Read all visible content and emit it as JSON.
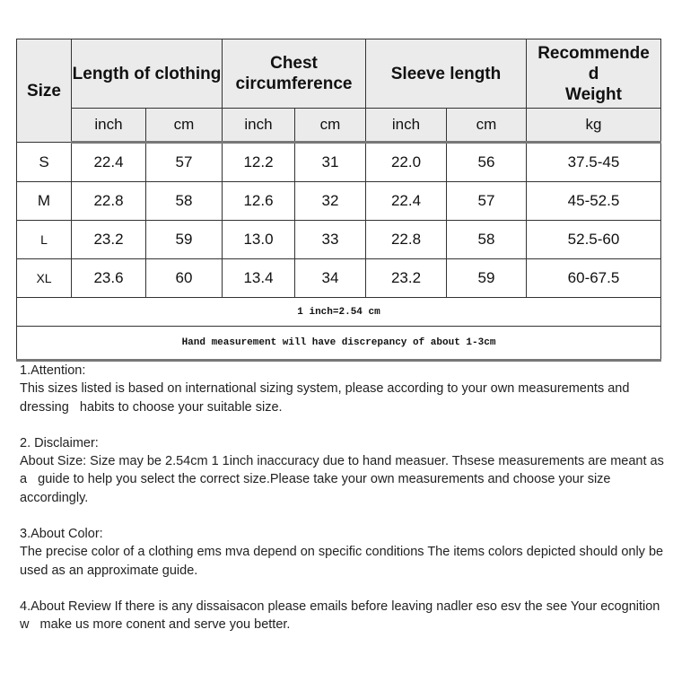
{
  "table": {
    "headers": [
      "Size",
      "Length of clothing",
      "Chest circumference",
      "Sleeve length",
      "Recommended Weight"
    ],
    "header_weight_display": "Recommende\nd\nWeight",
    "units": [
      "inch",
      "cm",
      "inch",
      "cm",
      "inch",
      "cm",
      "kg"
    ],
    "rows": [
      [
        "S",
        "22.4",
        "57",
        "12.2",
        "31",
        "22.0",
        "56",
        "37.5-45"
      ],
      [
        "M",
        "22.8",
        "58",
        "12.6",
        "32",
        "22.4",
        "57",
        "45-52.5"
      ],
      [
        "L",
        "23.2",
        "59",
        "13.0",
        "33",
        "22.8",
        "58",
        "52.5-60"
      ],
      [
        "XL",
        "23.6",
        "60",
        "13.4",
        "34",
        "23.2",
        "59",
        "60-67.5"
      ]
    ],
    "note_conversion": "1 inch=2.54 cm",
    "note_discrepancy": "Hand measurement will have discrepancy of about 1-3cm"
  },
  "notes": [
    {
      "title": "1.Attention:",
      "body": "This sizes listed is based on international sizing system, please according to your own measurements and dressing   habits to choose your suitable size."
    },
    {
      "title": "2. Disclaimer:",
      "body": "About Size: Size may be 2.54cm 1 1inch inaccuracy due to hand measuer. Thsese measurements are meant as a   guide to help you select the correct size.Please take your own measurements and choose your size accordingly."
    },
    {
      "title": "3.About Color:",
      "body": "The precise color of a clothing ems mva depend on specific conditions The items colors depicted should only be   used as an approximate guide."
    },
    {
      "title": "",
      "body": "4.About Review If there is any dissaisacon please emails before leaving nadler eso esv the see Your ecognition w   make us more conent and serve you better."
    }
  ]
}
